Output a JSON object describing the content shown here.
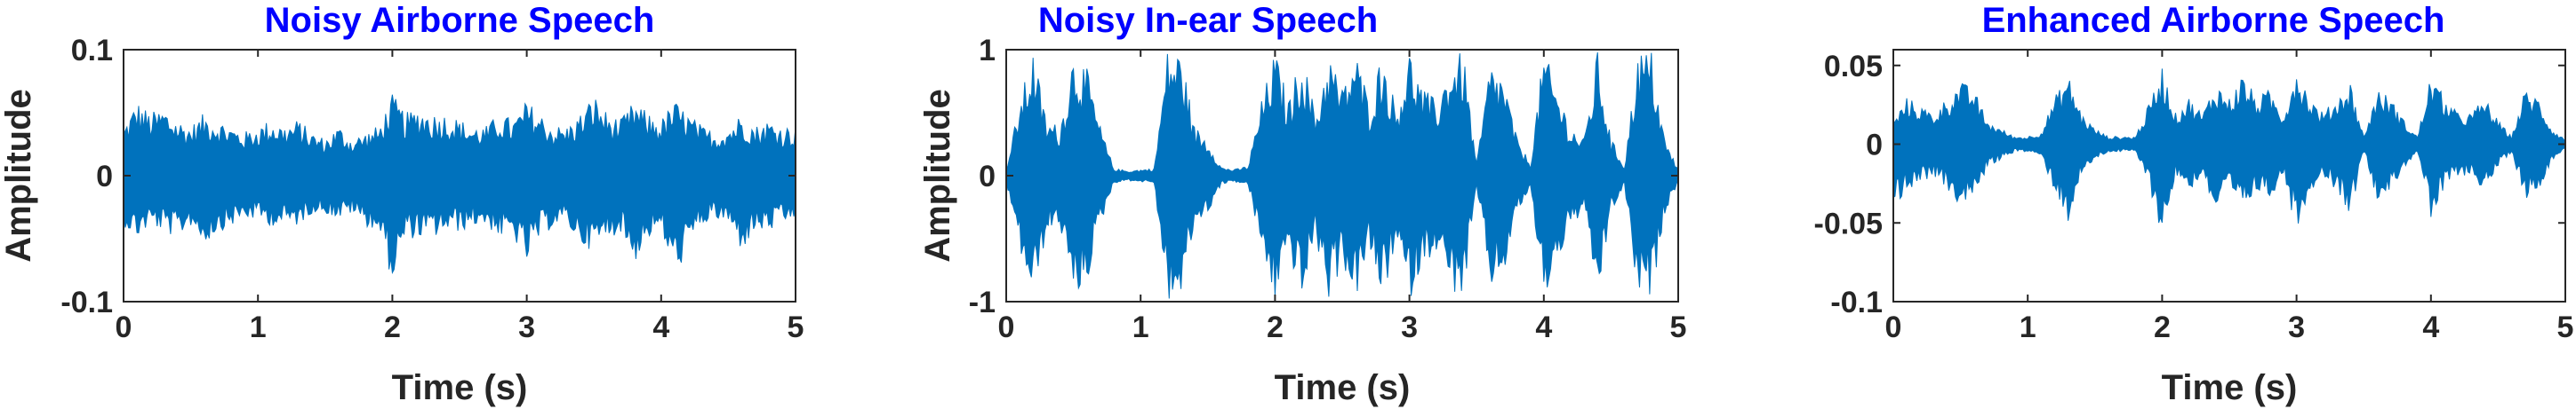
{
  "chart_data": [
    {
      "type": "line",
      "title": "Noisy Airborne Speech",
      "xlabel": "Time (s)",
      "ylabel": "Amplitude",
      "xlim": [
        0,
        5
      ],
      "ylim": [
        -0.1,
        0.1
      ],
      "xticks": [
        0,
        1,
        2,
        3,
        4,
        5
      ],
      "xtick_labels": [
        "0",
        "1",
        "2",
        "3",
        "4",
        "5"
      ],
      "yticks": [
        -0.1,
        0,
        0.1
      ],
      "ytick_labels": [
        "-0.1",
        "0",
        "0.1"
      ],
      "color": "#0072bd",
      "series": [
        {
          "x": [
            0.0,
            0.1,
            0.2,
            0.3,
            0.4,
            0.5,
            0.6,
            0.7,
            0.8,
            0.9,
            1.0,
            1.1,
            1.2,
            1.3,
            1.4,
            1.5,
            1.6,
            1.7,
            1.8,
            1.9,
            2.0,
            2.1,
            2.2,
            2.3,
            2.4,
            2.5,
            2.6,
            2.7,
            2.8,
            2.9,
            3.0,
            3.1,
            3.2,
            3.3,
            3.4,
            3.5,
            3.6,
            3.7,
            3.8,
            3.9,
            4.0,
            4.1,
            4.2,
            4.3,
            4.4,
            4.5,
            4.6,
            4.7,
            4.8,
            4.9,
            5.0
          ],
          "y_max": [
            0.04,
            0.06,
            0.05,
            0.055,
            0.045,
            0.04,
            0.05,
            0.045,
            0.04,
            0.035,
            0.04,
            0.045,
            0.04,
            0.045,
            0.035,
            0.03,
            0.04,
            0.03,
            0.035,
            0.04,
            0.065,
            0.05,
            0.055,
            0.05,
            0.05,
            0.045,
            0.04,
            0.04,
            0.05,
            0.045,
            0.06,
            0.05,
            0.04,
            0.04,
            0.05,
            0.065,
            0.05,
            0.045,
            0.06,
            0.05,
            0.045,
            0.06,
            0.05,
            0.04,
            0.035,
            0.04,
            0.05,
            0.04,
            0.045,
            0.04,
            0.04
          ],
          "y_min": [
            -0.04,
            -0.05,
            -0.04,
            -0.045,
            -0.05,
            -0.04,
            -0.055,
            -0.045,
            -0.04,
            -0.035,
            -0.035,
            -0.04,
            -0.04,
            -0.04,
            -0.03,
            -0.03,
            -0.035,
            -0.03,
            -0.04,
            -0.045,
            -0.085,
            -0.05,
            -0.05,
            -0.05,
            -0.045,
            -0.045,
            -0.04,
            -0.04,
            -0.05,
            -0.05,
            -0.07,
            -0.05,
            -0.04,
            -0.04,
            -0.055,
            -0.06,
            -0.05,
            -0.045,
            -0.07,
            -0.05,
            -0.045,
            -0.08,
            -0.06,
            -0.04,
            -0.035,
            -0.04,
            -0.06,
            -0.045,
            -0.045,
            -0.04,
            -0.035
          ]
        }
      ]
    },
    {
      "type": "line",
      "title": "Noisy In-ear Speech",
      "xlabel": "Time (s)",
      "ylabel": "Amplitude",
      "xlim": [
        0,
        5
      ],
      "ylim": [
        -1,
        1
      ],
      "xticks": [
        0,
        1,
        2,
        3,
        4,
        5
      ],
      "xtick_labels": [
        "0",
        "1",
        "2",
        "3",
        "4",
        "5"
      ],
      "yticks": [
        -1,
        0,
        1
      ],
      "ytick_labels": [
        "-1",
        "0",
        "1"
      ],
      "color": "#0072bd",
      "series": [
        {
          "x": [
            0.0,
            0.1,
            0.2,
            0.3,
            0.4,
            0.5,
            0.6,
            0.7,
            0.8,
            0.9,
            1.0,
            1.1,
            1.2,
            1.3,
            1.4,
            1.5,
            1.6,
            1.7,
            1.8,
            1.9,
            2.0,
            2.1,
            2.2,
            2.3,
            2.4,
            2.5,
            2.6,
            2.7,
            2.8,
            2.9,
            3.0,
            3.1,
            3.2,
            3.3,
            3.4,
            3.5,
            3.6,
            3.7,
            3.8,
            3.9,
            4.0,
            4.1,
            4.2,
            4.3,
            4.4,
            4.5,
            4.6,
            4.7,
            4.8,
            4.9,
            5.0
          ],
          "y_max": [
            0.05,
            0.6,
            1.0,
            0.45,
            0.4,
            1.0,
            0.85,
            0.4,
            0.06,
            0.04,
            0.05,
            0.06,
            1.0,
            1.0,
            0.4,
            0.3,
            0.07,
            0.05,
            0.08,
            0.6,
            1.0,
            0.6,
            1.0,
            0.5,
            1.0,
            0.7,
            1.0,
            0.6,
            1.0,
            0.55,
            1.0,
            0.7,
            0.6,
            0.9,
            1.0,
            0.1,
            0.9,
            0.8,
            0.3,
            0.1,
            1.0,
            0.7,
            0.4,
            0.3,
            1.0,
            0.3,
            0.08,
            1.0,
            1.0,
            0.3,
            0.05
          ],
          "y_min": [
            -0.05,
            -0.6,
            -1.0,
            -0.45,
            -0.4,
            -1.0,
            -0.85,
            -0.4,
            -0.06,
            -0.04,
            -0.05,
            -0.06,
            -1.0,
            -1.0,
            -0.4,
            -0.3,
            -0.07,
            -0.05,
            -0.08,
            -0.6,
            -1.0,
            -0.6,
            -1.0,
            -0.5,
            -1.0,
            -0.7,
            -1.0,
            -0.6,
            -1.0,
            -0.55,
            -1.0,
            -0.7,
            -0.6,
            -0.9,
            -1.0,
            -0.1,
            -0.9,
            -0.8,
            -0.3,
            -0.1,
            -1.0,
            -0.7,
            -0.4,
            -0.3,
            -1.0,
            -0.3,
            -0.08,
            -1.0,
            -1.0,
            -0.3,
            -0.05
          ]
        }
      ]
    },
    {
      "type": "line",
      "title": "Enhanced Airborne Speech",
      "xlabel": "Time (s)",
      "ylabel": "",
      "xlim": [
        0,
        5
      ],
      "ylim": [
        -0.1,
        0.06
      ],
      "xticks": [
        0,
        1,
        2,
        3,
        4,
        5
      ],
      "xtick_labels": [
        "0",
        "1",
        "2",
        "3",
        "4",
        "5"
      ],
      "yticks": [
        -0.1,
        -0.05,
        0,
        0.05
      ],
      "ytick_labels": [
        "-0.1",
        "-0.05",
        "0",
        "0.05"
      ],
      "color": "#0072bd",
      "series": [
        {
          "x": [
            0.0,
            0.1,
            0.2,
            0.3,
            0.4,
            0.5,
            0.6,
            0.7,
            0.8,
            0.9,
            1.0,
            1.1,
            1.2,
            1.3,
            1.4,
            1.5,
            1.6,
            1.7,
            1.8,
            1.9,
            2.0,
            2.1,
            2.2,
            2.3,
            2.4,
            2.5,
            2.6,
            2.7,
            2.8,
            2.9,
            3.0,
            3.1,
            3.2,
            3.3,
            3.4,
            3.5,
            3.6,
            3.7,
            3.8,
            3.9,
            4.0,
            4.1,
            4.2,
            4.3,
            4.4,
            4.5,
            4.6,
            4.7,
            4.8,
            4.9,
            5.0
          ],
          "y_max": [
            0.015,
            0.03,
            0.025,
            0.02,
            0.03,
            0.04,
            0.035,
            0.015,
            0.01,
            0.005,
            0.005,
            0.008,
            0.03,
            0.045,
            0.02,
            0.01,
            0.005,
            0.005,
            0.005,
            0.025,
            0.05,
            0.02,
            0.03,
            0.02,
            0.04,
            0.03,
            0.045,
            0.03,
            0.035,
            0.02,
            0.05,
            0.03,
            0.02,
            0.03,
            0.04,
            0.005,
            0.035,
            0.03,
            0.015,
            0.005,
            0.045,
            0.03,
            0.02,
            0.02,
            0.03,
            0.015,
            0.005,
            0.035,
            0.03,
            0.01,
            0.003
          ],
          "y_min": [
            -0.04,
            -0.03,
            -0.025,
            -0.02,
            -0.03,
            -0.04,
            -0.035,
            -0.015,
            -0.01,
            -0.005,
            -0.005,
            -0.008,
            -0.03,
            -0.05,
            -0.02,
            -0.01,
            -0.005,
            -0.005,
            -0.005,
            -0.025,
            -0.06,
            -0.02,
            -0.03,
            -0.02,
            -0.045,
            -0.03,
            -0.045,
            -0.03,
            -0.035,
            -0.02,
            -0.055,
            -0.03,
            -0.02,
            -0.03,
            -0.045,
            -0.005,
            -0.035,
            -0.03,
            -0.015,
            -0.005,
            -0.05,
            -0.03,
            -0.02,
            -0.02,
            -0.03,
            -0.015,
            -0.005,
            -0.035,
            -0.03,
            -0.01,
            -0.003
          ]
        }
      ]
    }
  ]
}
